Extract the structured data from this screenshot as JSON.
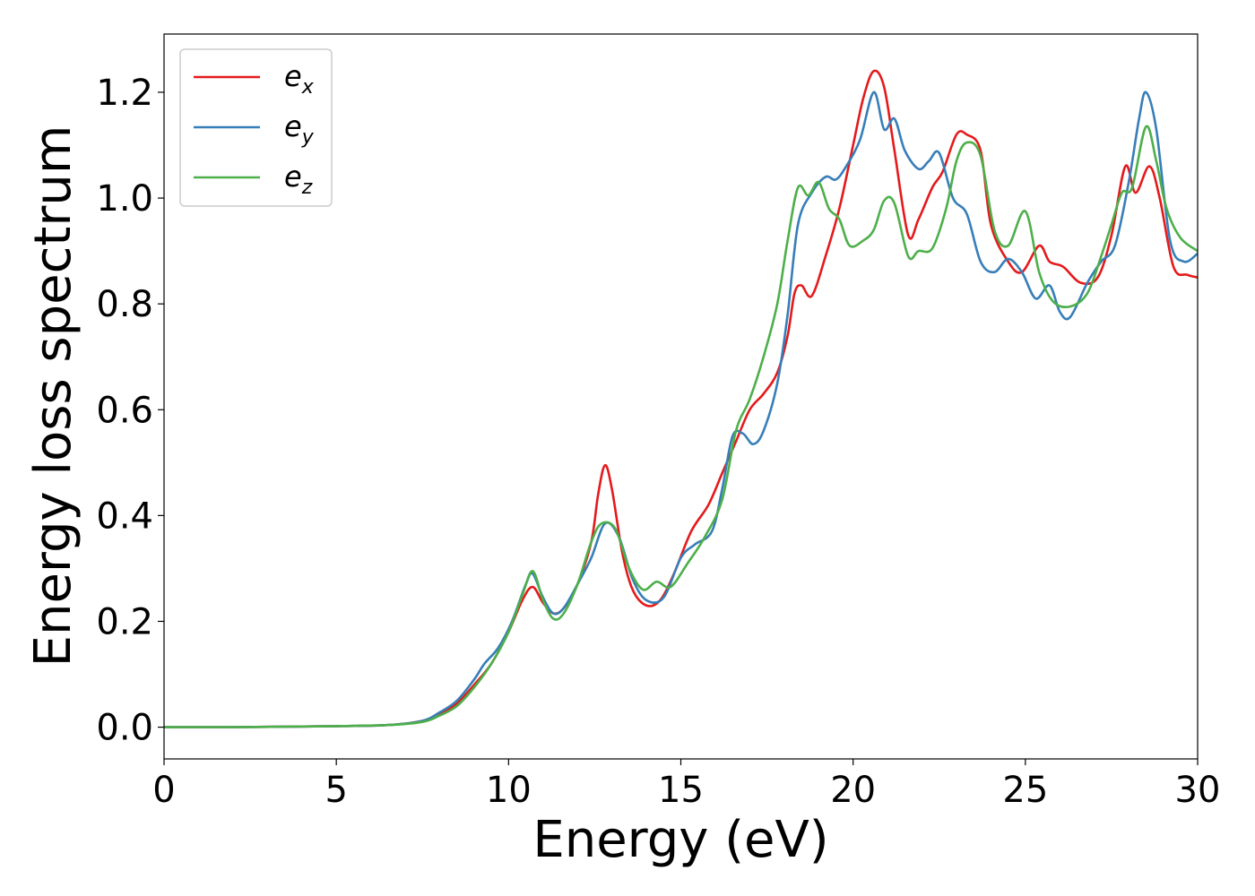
{
  "chart_data": {
    "type": "line",
    "title": "",
    "xlabel": "Energy (eV)",
    "ylabel": "Energy loss spectrum",
    "xlim": [
      0,
      30
    ],
    "ylim": [
      -0.06,
      1.31
    ],
    "xticks": [
      0,
      5,
      10,
      15,
      20,
      25,
      30
    ],
    "yticks": [
      0.0,
      0.2,
      0.4,
      0.6,
      0.8,
      1.0,
      1.2
    ],
    "xtick_labels": [
      "0",
      "5",
      "10",
      "15",
      "20",
      "25",
      "30"
    ],
    "ytick_labels": [
      "0.0",
      "0.2",
      "0.4",
      "0.6",
      "0.8",
      "1.0",
      "1.2"
    ],
    "grid": false,
    "legend": "top-left",
    "series": [
      {
        "name": "e_x",
        "base": "e",
        "sub": "x",
        "color": "#e41a1c",
        "points": [
          [
            0,
            0.0
          ],
          [
            2,
            0.0
          ],
          [
            5,
            0.002
          ],
          [
            6.5,
            0.004
          ],
          [
            7.5,
            0.012
          ],
          [
            8,
            0.025
          ],
          [
            8.5,
            0.045
          ],
          [
            9,
            0.08
          ],
          [
            9.5,
            0.12
          ],
          [
            10,
            0.18
          ],
          [
            10.4,
            0.24
          ],
          [
            10.7,
            0.265
          ],
          [
            11,
            0.235
          ],
          [
            11.3,
            0.215
          ],
          [
            11.6,
            0.225
          ],
          [
            12,
            0.27
          ],
          [
            12.4,
            0.35
          ],
          [
            12.6,
            0.44
          ],
          [
            12.8,
            0.495
          ],
          [
            13,
            0.45
          ],
          [
            13.3,
            0.33
          ],
          [
            13.6,
            0.26
          ],
          [
            14,
            0.23
          ],
          [
            14.4,
            0.24
          ],
          [
            14.8,
            0.29
          ],
          [
            15.3,
            0.37
          ],
          [
            15.8,
            0.42
          ],
          [
            16.2,
            0.48
          ],
          [
            16.6,
            0.54
          ],
          [
            17,
            0.6
          ],
          [
            17.4,
            0.63
          ],
          [
            17.8,
            0.67
          ],
          [
            18.1,
            0.74
          ],
          [
            18.3,
            0.82
          ],
          [
            18.5,
            0.835
          ],
          [
            18.8,
            0.815
          ],
          [
            19.2,
            0.89
          ],
          [
            19.6,
            0.98
          ],
          [
            20,
            1.1
          ],
          [
            20.3,
            1.19
          ],
          [
            20.6,
            1.24
          ],
          [
            20.9,
            1.21
          ],
          [
            21.2,
            1.09
          ],
          [
            21.6,
            0.93
          ],
          [
            21.9,
            0.96
          ],
          [
            22.3,
            1.02
          ],
          [
            22.6,
            1.05
          ],
          [
            23,
            1.12
          ],
          [
            23.3,
            1.12
          ],
          [
            23.7,
            1.09
          ],
          [
            24,
            0.95
          ],
          [
            24.5,
            0.88
          ],
          [
            24.9,
            0.86
          ],
          [
            25.4,
            0.91
          ],
          [
            25.7,
            0.88
          ],
          [
            26.1,
            0.87
          ],
          [
            26.6,
            0.84
          ],
          [
            27.1,
            0.85
          ],
          [
            27.5,
            0.93
          ],
          [
            27.9,
            1.06
          ],
          [
            28.2,
            1.01
          ],
          [
            28.6,
            1.06
          ],
          [
            28.9,
            1.0
          ],
          [
            29.3,
            0.87
          ],
          [
            29.7,
            0.855
          ],
          [
            30,
            0.85
          ]
        ]
      },
      {
        "name": "e_y",
        "base": "e",
        "sub": "y",
        "color": "#377eb8",
        "points": [
          [
            0,
            0.0
          ],
          [
            2,
            0.0
          ],
          [
            5,
            0.002
          ],
          [
            6.5,
            0.004
          ],
          [
            7.5,
            0.012
          ],
          [
            8,
            0.028
          ],
          [
            8.5,
            0.05
          ],
          [
            9,
            0.09
          ],
          [
            9.3,
            0.12
          ],
          [
            9.7,
            0.15
          ],
          [
            10.1,
            0.2
          ],
          [
            10.5,
            0.27
          ],
          [
            10.7,
            0.29
          ],
          [
            11,
            0.245
          ],
          [
            11.3,
            0.215
          ],
          [
            11.6,
            0.225
          ],
          [
            12,
            0.27
          ],
          [
            12.4,
            0.32
          ],
          [
            12.8,
            0.385
          ],
          [
            13.2,
            0.36
          ],
          [
            13.6,
            0.28
          ],
          [
            14,
            0.24
          ],
          [
            14.5,
            0.245
          ],
          [
            15,
            0.32
          ],
          [
            15.4,
            0.345
          ],
          [
            15.9,
            0.37
          ],
          [
            16.2,
            0.45
          ],
          [
            16.5,
            0.55
          ],
          [
            16.8,
            0.555
          ],
          [
            17.1,
            0.535
          ],
          [
            17.4,
            0.56
          ],
          [
            17.8,
            0.65
          ],
          [
            18.1,
            0.78
          ],
          [
            18.4,
            0.95
          ],
          [
            18.8,
            1.01
          ],
          [
            19.2,
            1.04
          ],
          [
            19.5,
            1.035
          ],
          [
            19.8,
            1.06
          ],
          [
            20.2,
            1.11
          ],
          [
            20.6,
            1.2
          ],
          [
            20.9,
            1.13
          ],
          [
            21.2,
            1.15
          ],
          [
            21.5,
            1.09
          ],
          [
            21.9,
            1.055
          ],
          [
            22.2,
            1.07
          ],
          [
            22.5,
            1.085
          ],
          [
            22.9,
            1.0
          ],
          [
            23.3,
            0.97
          ],
          [
            23.7,
            0.88
          ],
          [
            24.1,
            0.86
          ],
          [
            24.5,
            0.885
          ],
          [
            24.9,
            0.86
          ],
          [
            25.3,
            0.81
          ],
          [
            25.7,
            0.835
          ],
          [
            26,
            0.785
          ],
          [
            26.3,
            0.775
          ],
          [
            26.8,
            0.84
          ],
          [
            27.2,
            0.88
          ],
          [
            27.6,
            0.91
          ],
          [
            28,
            1.03
          ],
          [
            28.3,
            1.15
          ],
          [
            28.5,
            1.2
          ],
          [
            28.8,
            1.13
          ],
          [
            29.2,
            0.92
          ],
          [
            29.6,
            0.88
          ],
          [
            30,
            0.895
          ]
        ]
      },
      {
        "name": "e_z",
        "base": "e",
        "sub": "z",
        "color": "#4daf4a",
        "points": [
          [
            0,
            0.0
          ],
          [
            2,
            0.0
          ],
          [
            5,
            0.002
          ],
          [
            6.5,
            0.004
          ],
          [
            7.5,
            0.01
          ],
          [
            8,
            0.022
          ],
          [
            8.5,
            0.04
          ],
          [
            9,
            0.075
          ],
          [
            9.5,
            0.12
          ],
          [
            10,
            0.18
          ],
          [
            10.4,
            0.25
          ],
          [
            10.7,
            0.295
          ],
          [
            11,
            0.24
          ],
          [
            11.3,
            0.205
          ],
          [
            11.6,
            0.215
          ],
          [
            12,
            0.27
          ],
          [
            12.4,
            0.35
          ],
          [
            12.7,
            0.385
          ],
          [
            13.1,
            0.375
          ],
          [
            13.5,
            0.3
          ],
          [
            13.9,
            0.26
          ],
          [
            14.3,
            0.275
          ],
          [
            14.7,
            0.265
          ],
          [
            15.2,
            0.31
          ],
          [
            15.7,
            0.36
          ],
          [
            16.2,
            0.43
          ],
          [
            16.6,
            0.56
          ],
          [
            17,
            0.62
          ],
          [
            17.4,
            0.7
          ],
          [
            17.8,
            0.8
          ],
          [
            18.1,
            0.92
          ],
          [
            18.4,
            1.02
          ],
          [
            18.7,
            1.005
          ],
          [
            19,
            1.03
          ],
          [
            19.3,
            0.98
          ],
          [
            19.6,
            0.96
          ],
          [
            19.9,
            0.91
          ],
          [
            20.3,
            0.92
          ],
          [
            20.6,
            0.94
          ],
          [
            20.9,
            0.995
          ],
          [
            21.2,
            0.99
          ],
          [
            21.6,
            0.89
          ],
          [
            21.9,
            0.9
          ],
          [
            22.3,
            0.905
          ],
          [
            22.7,
            0.98
          ],
          [
            23,
            1.07
          ],
          [
            23.3,
            1.105
          ],
          [
            23.7,
            1.08
          ],
          [
            24.1,
            0.94
          ],
          [
            24.5,
            0.91
          ],
          [
            25,
            0.975
          ],
          [
            25.4,
            0.86
          ],
          [
            25.8,
            0.805
          ],
          [
            26.3,
            0.795
          ],
          [
            26.8,
            0.82
          ],
          [
            27.2,
            0.89
          ],
          [
            27.5,
            0.95
          ],
          [
            27.8,
            1.01
          ],
          [
            28.1,
            1.02
          ],
          [
            28.5,
            1.135
          ],
          [
            28.8,
            1.07
          ],
          [
            29.1,
            0.98
          ],
          [
            29.5,
            0.925
          ],
          [
            30,
            0.9
          ]
        ]
      }
    ]
  }
}
